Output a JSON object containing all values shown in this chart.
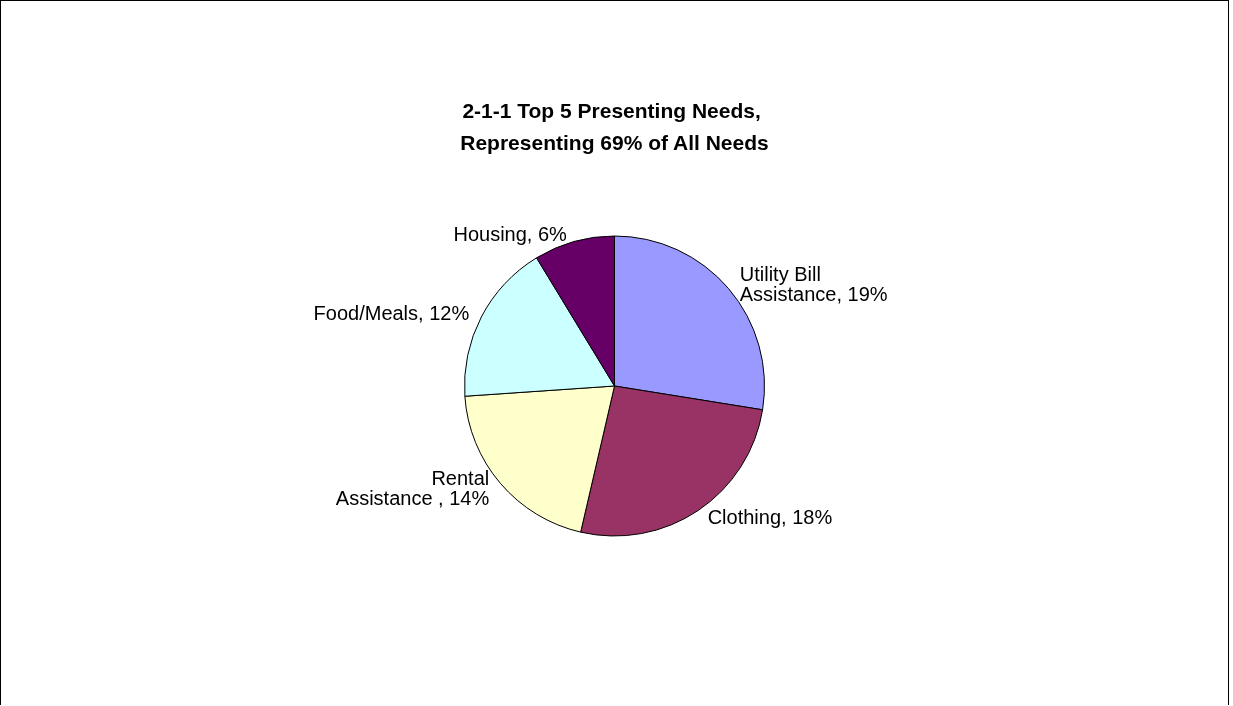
{
  "chart_data": {
    "type": "pie",
    "title": "2-1-1 Top 5 Presenting Needs, Representing 69% of All Needs",
    "categories": [
      "Utility Bill Assistance",
      "Clothing",
      "Rental Assistance ",
      "Food/Meals",
      "Housing"
    ],
    "values": [
      19,
      18,
      14,
      12,
      6
    ],
    "value_labels": [
      "19%",
      "18%",
      "14%",
      "12%",
      "6%"
    ],
    "colors": [
      "#9999ff",
      "#993366",
      "#ffffcc",
      "#ccffff",
      "#660066"
    ],
    "legend": false
  }
}
